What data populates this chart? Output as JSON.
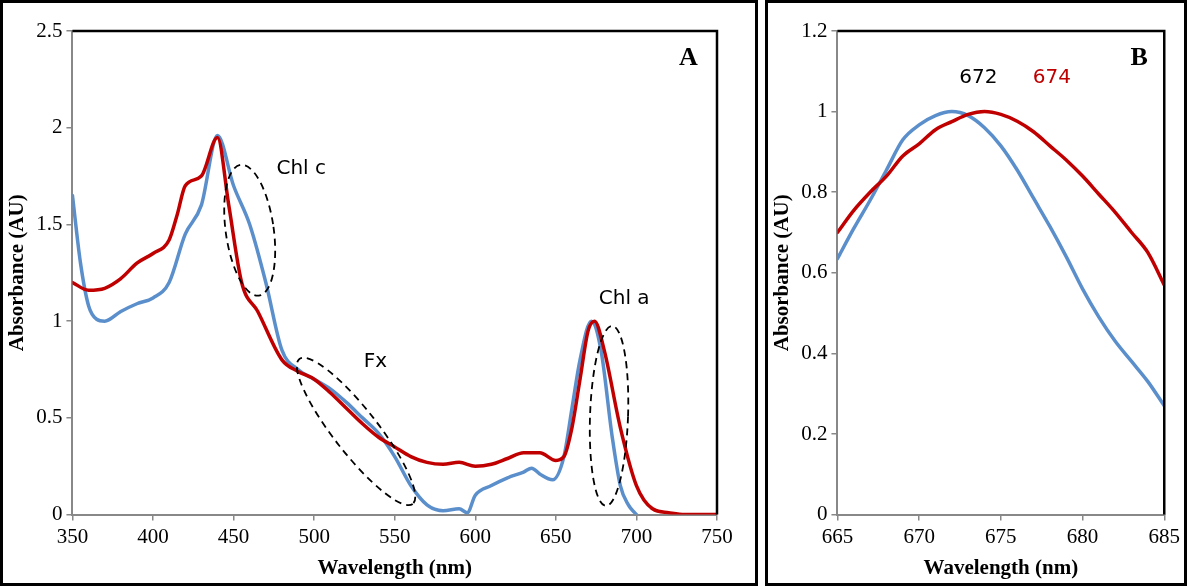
{
  "chart_data": [
    {
      "type": "line",
      "xlabel": "Wavelength (nm)",
      "ylabel": "Absorbance (AU)",
      "xlim": [
        350,
        750
      ],
      "ylim": [
        0,
        2.5
      ],
      "xticks": [
        350,
        400,
        450,
        500,
        550,
        600,
        650,
        700,
        750
      ],
      "yticks": [
        0,
        0.5,
        1,
        1.5,
        2,
        2.5
      ],
      "grid": false,
      "legend": false,
      "marker": "none",
      "line_style": "solid",
      "annotations": [
        "A",
        "Chl c",
        "Fx",
        "Chl a"
      ],
      "series": [
        {
          "color": "#c00000",
          "x": [
            350,
            360,
            370,
            380,
            390,
            400,
            410,
            415,
            420,
            430,
            440,
            447,
            455,
            465,
            480,
            490,
            500,
            510,
            520,
            530,
            540,
            550,
            560,
            570,
            580,
            590,
            600,
            610,
            620,
            630,
            640,
            650,
            655,
            660,
            665,
            670,
            674,
            680,
            690,
            700,
            710,
            720,
            730,
            750
          ],
          "values": [
            1.2,
            1.16,
            1.17,
            1.22,
            1.3,
            1.35,
            1.42,
            1.55,
            1.7,
            1.75,
            1.95,
            1.6,
            1.2,
            1.05,
            0.8,
            0.74,
            0.7,
            0.63,
            0.55,
            0.47,
            0.4,
            0.35,
            0.3,
            0.27,
            0.26,
            0.27,
            0.25,
            0.26,
            0.29,
            0.32,
            0.32,
            0.28,
            0.3,
            0.45,
            0.7,
            0.95,
            1.0,
            0.85,
            0.45,
            0.15,
            0.03,
            0.01,
            0,
            0
          ]
        },
        {
          "color": "#5b8fcb",
          "x": [
            350,
            355,
            360,
            365,
            370,
            380,
            390,
            400,
            410,
            420,
            430,
            440,
            450,
            460,
            470,
            480,
            490,
            500,
            510,
            520,
            530,
            540,
            550,
            560,
            570,
            580,
            590,
            595,
            600,
            610,
            620,
            630,
            635,
            640,
            648,
            655,
            660,
            665,
            672,
            678,
            685,
            690,
            695,
            700
          ],
          "values": [
            1.65,
            1.3,
            1.08,
            1.01,
            1.0,
            1.05,
            1.09,
            1.12,
            1.2,
            1.45,
            1.6,
            1.96,
            1.7,
            1.5,
            1.2,
            0.85,
            0.75,
            0.7,
            0.65,
            0.58,
            0.5,
            0.42,
            0.3,
            0.15,
            0.05,
            0.02,
            0.03,
            0.01,
            0.1,
            0.15,
            0.19,
            0.22,
            0.24,
            0.21,
            0.18,
            0.3,
            0.55,
            0.8,
            1.0,
            0.85,
            0.4,
            0.15,
            0.05,
            0
          ]
        }
      ]
    },
    {
      "type": "line",
      "xlabel": "Wavelength (nm)",
      "ylabel": "Absorbance (AU)",
      "xlim": [
        665,
        685
      ],
      "ylim": [
        0,
        1.2
      ],
      "xticks": [
        665,
        670,
        675,
        680,
        685
      ],
      "yticks": [
        0,
        0.2,
        0.4,
        0.6,
        0.8,
        1,
        1.2
      ],
      "grid": false,
      "legend": false,
      "marker": "none",
      "line_style": "solid",
      "annotations": [
        "B",
        "672",
        "674"
      ],
      "series": [
        {
          "color": "#c00000",
          "x": [
            665,
            666,
            667,
            668,
            669,
            670,
            671,
            672,
            673,
            674,
            675,
            676,
            677,
            678,
            679,
            680,
            681,
            682,
            683,
            684,
            685
          ],
          "values": [
            0.7,
            0.755,
            0.8,
            0.84,
            0.89,
            0.92,
            0.955,
            0.975,
            0.993,
            1.0,
            0.993,
            0.976,
            0.95,
            0.915,
            0.88,
            0.84,
            0.795,
            0.75,
            0.7,
            0.65,
            0.57
          ]
        },
        {
          "color": "#5b8fcb",
          "x": [
            665,
            666,
            667,
            668,
            669,
            670,
            671,
            672,
            673,
            674,
            675,
            676,
            677,
            678,
            679,
            680,
            681,
            682,
            683,
            684,
            685
          ],
          "values": [
            0.635,
            0.71,
            0.78,
            0.855,
            0.93,
            0.967,
            0.99,
            1.0,
            0.99,
            0.96,
            0.915,
            0.855,
            0.785,
            0.715,
            0.64,
            0.56,
            0.49,
            0.43,
            0.38,
            0.33,
            0.27
          ]
        }
      ]
    }
  ]
}
